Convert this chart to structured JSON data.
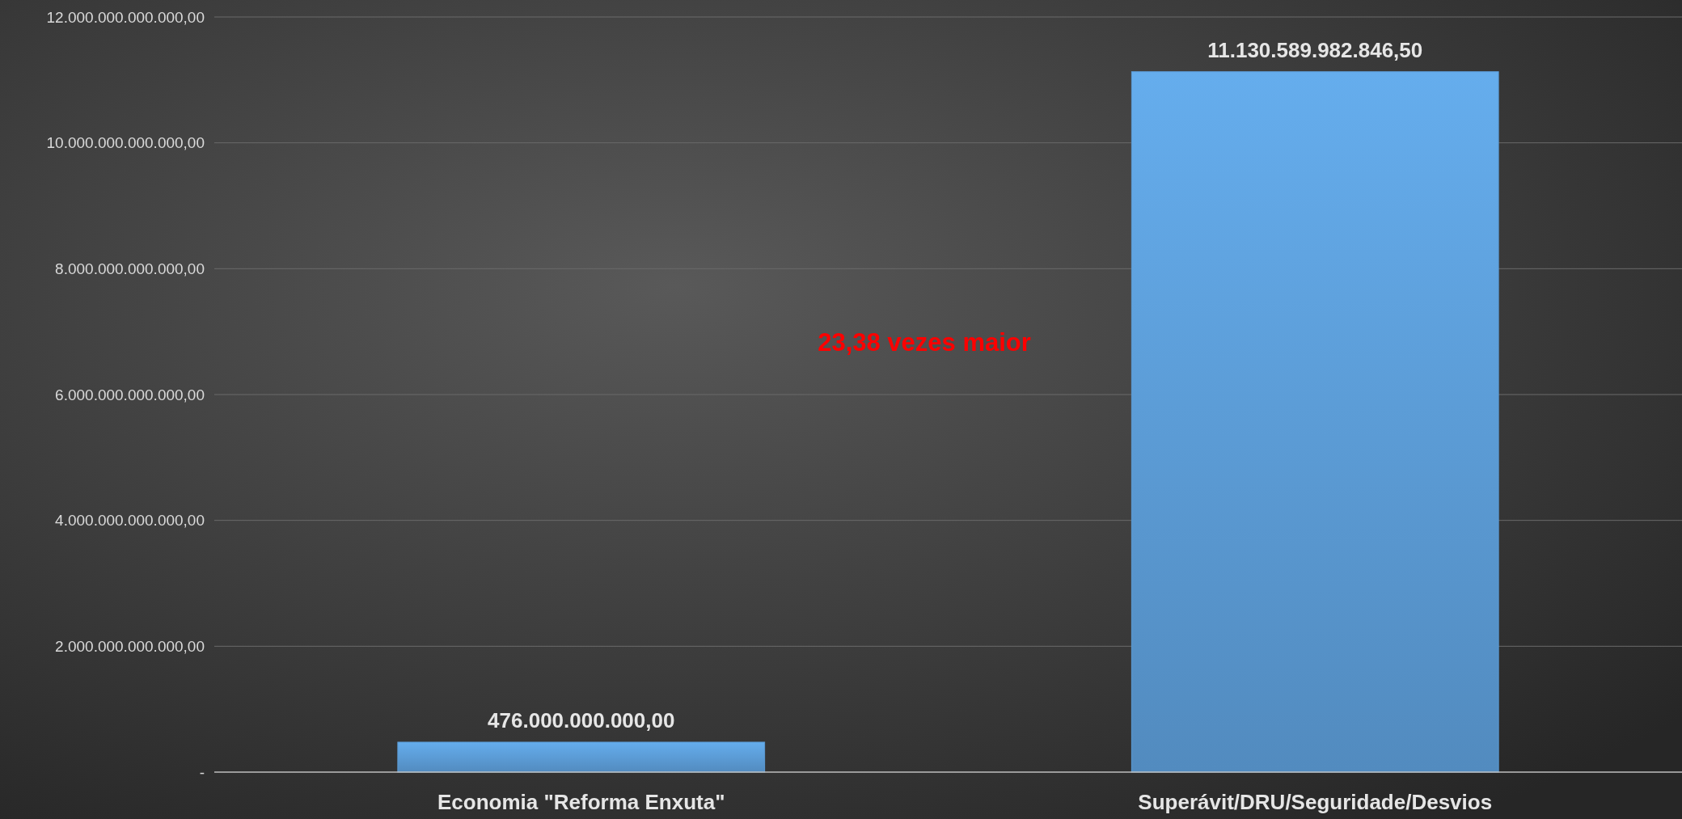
{
  "chart_data": {
    "type": "bar",
    "categories": [
      "Economia \"Reforma Enxuta\"",
      "Superávit/DRU/Seguridade/Desvios"
    ],
    "values": [
      476000000000,
      11130589982846.5
    ],
    "value_labels": [
      "476.000.000.000,00",
      "11.130.589.982.846,50"
    ],
    "color": "#5b9bd5",
    "ylim": [
      0,
      12000000000000
    ],
    "yticks": [
      {
        "value": 0,
        "label": "-"
      },
      {
        "value": 2000000000000,
        "label": "2.000.000.000.000,00"
      },
      {
        "value": 4000000000000,
        "label": "4.000.000.000.000,00"
      },
      {
        "value": 6000000000000,
        "label": "6.000.000.000.000,00"
      },
      {
        "value": 8000000000000,
        "label": "8.000.000.000.000,00"
      },
      {
        "value": 10000000000000,
        "label": "10.000.000.000.000,00"
      },
      {
        "value": 12000000000000,
        "label": "12.000.000.000.000,00"
      }
    ],
    "grid": "y",
    "annotations": [
      "23,38 vezes maior"
    ]
  }
}
